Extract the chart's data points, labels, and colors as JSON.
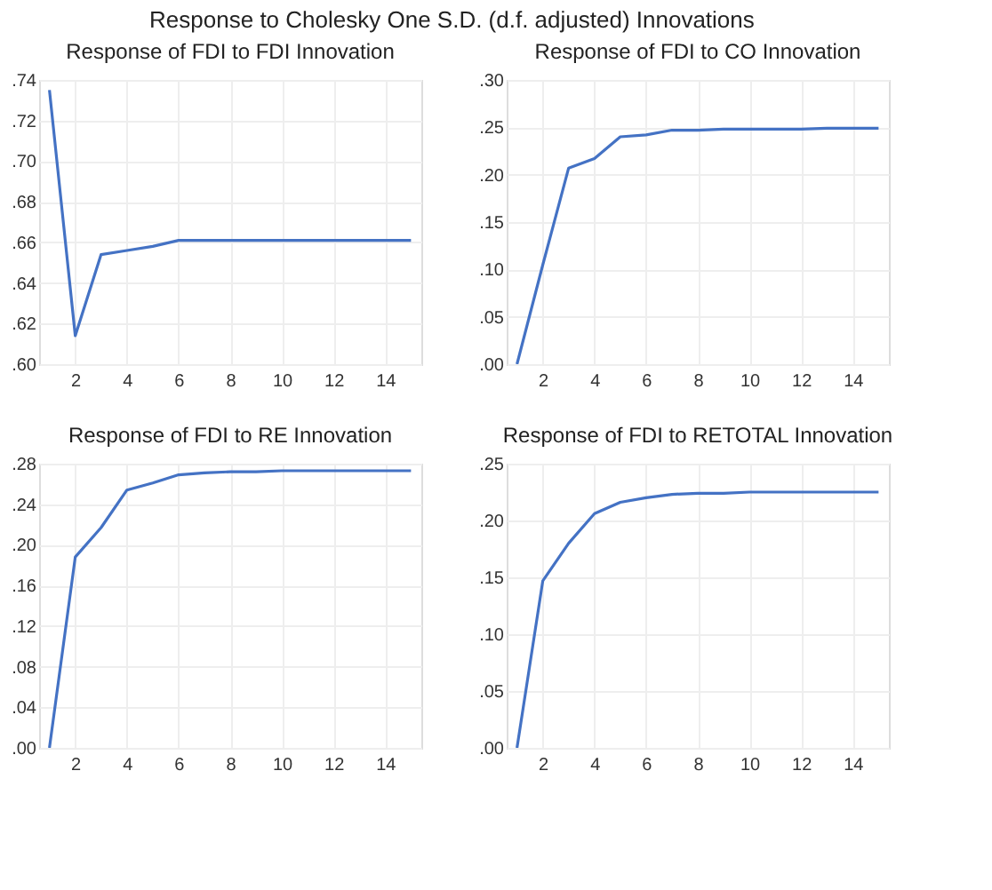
{
  "chart_data": [
    {
      "type": "line",
      "title": "Response of FDI to FDI Innovation",
      "annotations": [
        "Response to Cholesky One S.D. (d.f. adjusted) Innovations"
      ],
      "x": [
        1,
        2,
        3,
        4,
        5,
        6,
        7,
        8,
        9,
        10,
        11,
        12,
        13,
        14,
        15
      ],
      "series": [
        {
          "color": "#4472c4",
          "values": [
            0.735,
            0.614,
            0.654,
            0.656,
            0.658,
            0.661,
            0.661,
            0.661,
            0.661,
            0.661,
            0.661,
            0.661,
            0.661,
            0.661,
            0.661
          ]
        }
      ],
      "xlim": [
        0.6,
        15.4
      ],
      "xticks": [
        2,
        4,
        6,
        8,
        10,
        12,
        14
      ],
      "ylim": [
        0.6,
        0.74
      ],
      "yticks": [
        {
          "value": 0.6,
          "label": ".60"
        },
        {
          "value": 0.62,
          "label": ".62"
        },
        {
          "value": 0.64,
          "label": ".64"
        },
        {
          "value": 0.66,
          "label": ".66"
        },
        {
          "value": 0.68,
          "label": ".68"
        },
        {
          "value": 0.7,
          "label": ".70"
        },
        {
          "value": 0.72,
          "label": ".72"
        },
        {
          "value": 0.74,
          "label": ".74"
        }
      ],
      "grid": true
    },
    {
      "type": "line",
      "title": "Response of FDI to CO Innovation",
      "x": [
        1,
        2,
        3,
        4,
        5,
        6,
        7,
        8,
        9,
        10,
        11,
        12,
        13,
        14,
        15
      ],
      "series": [
        {
          "color": "#4472c4",
          "values": [
            0.0,
            0.105,
            0.207,
            0.217,
            0.24,
            0.242,
            0.247,
            0.247,
            0.248,
            0.248,
            0.248,
            0.248,
            0.249,
            0.249,
            0.249
          ]
        }
      ],
      "xlim": [
        0.6,
        15.4
      ],
      "xticks": [
        2,
        4,
        6,
        8,
        10,
        12,
        14
      ],
      "ylim": [
        0.0,
        0.3
      ],
      "yticks": [
        {
          "value": 0.0,
          "label": ".00"
        },
        {
          "value": 0.05,
          "label": ".05"
        },
        {
          "value": 0.1,
          "label": ".10"
        },
        {
          "value": 0.15,
          "label": ".15"
        },
        {
          "value": 0.2,
          "label": ".20"
        },
        {
          "value": 0.25,
          "label": ".25"
        },
        {
          "value": 0.3,
          "label": ".30"
        }
      ],
      "grid": true
    },
    {
      "type": "line",
      "title": "Response of FDI to RE Innovation",
      "x": [
        1,
        2,
        3,
        4,
        5,
        6,
        7,
        8,
        9,
        10,
        11,
        12,
        13,
        14,
        15
      ],
      "series": [
        {
          "color": "#4472c4",
          "values": [
            0.0,
            0.188,
            0.217,
            0.254,
            0.261,
            0.269,
            0.271,
            0.272,
            0.272,
            0.273,
            0.273,
            0.273,
            0.273,
            0.273,
            0.273
          ]
        }
      ],
      "xlim": [
        0.6,
        15.4
      ],
      "xticks": [
        2,
        4,
        6,
        8,
        10,
        12,
        14
      ],
      "ylim": [
        0.0,
        0.28
      ],
      "yticks": [
        {
          "value": 0.0,
          "label": ".00"
        },
        {
          "value": 0.04,
          "label": ".04"
        },
        {
          "value": 0.08,
          "label": ".08"
        },
        {
          "value": 0.12,
          "label": ".12"
        },
        {
          "value": 0.16,
          "label": ".16"
        },
        {
          "value": 0.2,
          "label": ".20"
        },
        {
          "value": 0.24,
          "label": ".24"
        },
        {
          "value": 0.28,
          "label": ".28"
        }
      ],
      "grid": true
    },
    {
      "type": "line",
      "title": "Response of FDI to RETOTAL Innovation",
      "x": [
        1,
        2,
        3,
        4,
        5,
        6,
        7,
        8,
        9,
        10,
        11,
        12,
        13,
        14,
        15
      ],
      "series": [
        {
          "color": "#4472c4",
          "values": [
            0.0,
            0.147,
            0.18,
            0.206,
            0.216,
            0.22,
            0.223,
            0.224,
            0.224,
            0.225,
            0.225,
            0.225,
            0.225,
            0.225,
            0.225
          ]
        }
      ],
      "xlim": [
        0.6,
        15.4
      ],
      "xticks": [
        2,
        4,
        6,
        8,
        10,
        12,
        14
      ],
      "ylim": [
        0.0,
        0.25
      ],
      "yticks": [
        {
          "value": 0.0,
          "label": ".00"
        },
        {
          "value": 0.05,
          "label": ".05"
        },
        {
          "value": 0.1,
          "label": ".10"
        },
        {
          "value": 0.15,
          "label": ".15"
        },
        {
          "value": 0.2,
          "label": ".20"
        },
        {
          "value": 0.25,
          "label": ".25"
        }
      ],
      "grid": true
    }
  ]
}
